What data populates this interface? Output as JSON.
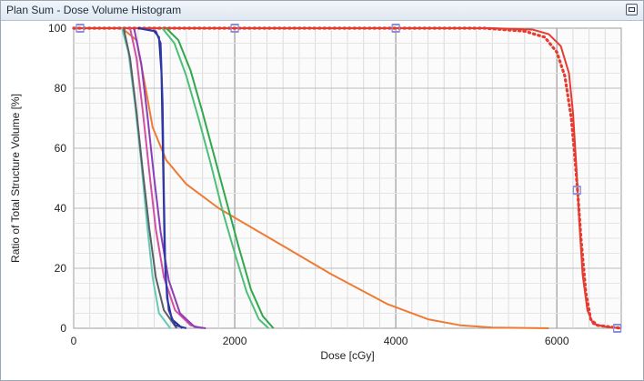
{
  "window": {
    "title": "Plan Sum - Dose Volume Histogram",
    "restore_icon": "restore-window-icon"
  },
  "chart_data": {
    "type": "line",
    "xlabel": "Dose [cGy]",
    "ylabel": "Ratio of Total Structure Volume [%]",
    "xlim": [
      0,
      6800
    ],
    "ylim": [
      0,
      100
    ],
    "xticks": [
      0,
      2000,
      4000,
      6000
    ],
    "yticks": [
      0,
      20,
      40,
      60,
      80,
      100
    ],
    "grid": true,
    "legend": "none",
    "series": [
      {
        "color": "#e53b30",
        "style": "solid",
        "points": [
          [
            0,
            100
          ],
          [
            5200,
            100
          ],
          [
            5700,
            99.5
          ],
          [
            5900,
            98
          ],
          [
            6050,
            94
          ],
          [
            6150,
            85
          ],
          [
            6200,
            72
          ],
          [
            6240,
            55
          ],
          [
            6280,
            35
          ],
          [
            6320,
            18
          ],
          [
            6380,
            6
          ],
          [
            6450,
            1.5
          ],
          [
            6600,
            0.5
          ],
          [
            6800,
            0
          ]
        ]
      },
      {
        "color": "#e53b30",
        "style": "dotted",
        "points": [
          [
            0,
            100
          ],
          [
            5100,
            100
          ],
          [
            5600,
            99
          ],
          [
            5850,
            97
          ],
          [
            6000,
            92
          ],
          [
            6100,
            84
          ],
          [
            6180,
            70
          ],
          [
            6220,
            58
          ],
          [
            6260,
            45
          ],
          [
            6300,
            30
          ],
          [
            6360,
            12
          ],
          [
            6420,
            3
          ],
          [
            6500,
            1
          ],
          [
            6800,
            0
          ]
        ]
      },
      {
        "color": "#8a8fd6",
        "style": "markers",
        "points": [
          [
            80,
            100
          ],
          [
            2000,
            100
          ],
          [
            4000,
            100
          ],
          [
            6250,
            46
          ],
          [
            6750,
            0
          ]
        ]
      },
      {
        "color": "#ee7a34",
        "style": "solid",
        "points": [
          [
            600,
            100
          ],
          [
            780,
            96
          ],
          [
            880,
            82
          ],
          [
            980,
            67
          ],
          [
            1150,
            56
          ],
          [
            1400,
            48
          ],
          [
            1800,
            40
          ],
          [
            2500,
            29
          ],
          [
            3200,
            18
          ],
          [
            3900,
            8
          ],
          [
            4400,
            3
          ],
          [
            4800,
            1
          ],
          [
            5200,
            0.2
          ],
          [
            5900,
            0
          ]
        ]
      },
      {
        "color": "#2ea84a",
        "style": "solid",
        "points": [
          [
            1150,
            100
          ],
          [
            1300,
            96
          ],
          [
            1450,
            86
          ],
          [
            1600,
            72
          ],
          [
            1750,
            57
          ],
          [
            1900,
            42
          ],
          [
            2050,
            27
          ],
          [
            2200,
            13
          ],
          [
            2350,
            4
          ],
          [
            2480,
            0
          ]
        ]
      },
      {
        "color": "#4cbf78",
        "style": "solid",
        "points": [
          [
            1100,
            100
          ],
          [
            1250,
            95
          ],
          [
            1400,
            84
          ],
          [
            1550,
            70
          ],
          [
            1700,
            55
          ],
          [
            1850,
            39
          ],
          [
            2000,
            25
          ],
          [
            2150,
            12
          ],
          [
            2300,
            3
          ],
          [
            2420,
            0
          ]
        ]
      },
      {
        "color": "#66c9b4",
        "style": "solid",
        "points": [
          [
            600,
            100
          ],
          [
            680,
            92
          ],
          [
            760,
            75
          ],
          [
            840,
            55
          ],
          [
            910,
            35
          ],
          [
            980,
            17
          ],
          [
            1060,
            5
          ],
          [
            1200,
            0
          ]
        ]
      },
      {
        "color": "#5a5f66",
        "style": "solid",
        "points": [
          [
            620,
            100
          ],
          [
            700,
            90
          ],
          [
            780,
            72
          ],
          [
            860,
            52
          ],
          [
            940,
            33
          ],
          [
            1020,
            17
          ],
          [
            1120,
            6
          ],
          [
            1280,
            0
          ]
        ]
      },
      {
        "color": "#d44fa4",
        "style": "solid",
        "points": [
          [
            700,
            100
          ],
          [
            780,
            90
          ],
          [
            860,
            72
          ],
          [
            940,
            52
          ],
          [
            1020,
            33
          ],
          [
            1120,
            17
          ],
          [
            1260,
            6
          ],
          [
            1450,
            1
          ],
          [
            1600,
            0
          ]
        ]
      },
      {
        "color": "#8a3fb8",
        "style": "solid",
        "points": [
          [
            750,
            100
          ],
          [
            840,
            88
          ],
          [
            920,
            70
          ],
          [
            1000,
            50
          ],
          [
            1080,
            32
          ],
          [
            1180,
            16
          ],
          [
            1320,
            5
          ],
          [
            1500,
            0.5
          ],
          [
            1640,
            0
          ]
        ]
      },
      {
        "color": "#1e2a8a",
        "style": "solid",
        "points": [
          [
            800,
            100
          ],
          [
            1000,
            99
          ],
          [
            1060,
            97
          ],
          [
            1090,
            85
          ],
          [
            1110,
            55
          ],
          [
            1130,
            25
          ],
          [
            1160,
            10
          ],
          [
            1220,
            3
          ],
          [
            1350,
            0
          ]
        ]
      },
      {
        "color": "#2f3aa8",
        "style": "solid",
        "points": [
          [
            820,
            100
          ],
          [
            1020,
            99
          ],
          [
            1080,
            95
          ],
          [
            1105,
            75
          ],
          [
            1120,
            45
          ],
          [
            1140,
            18
          ],
          [
            1180,
            6
          ],
          [
            1260,
            1
          ],
          [
            1400,
            0
          ]
        ]
      }
    ]
  }
}
